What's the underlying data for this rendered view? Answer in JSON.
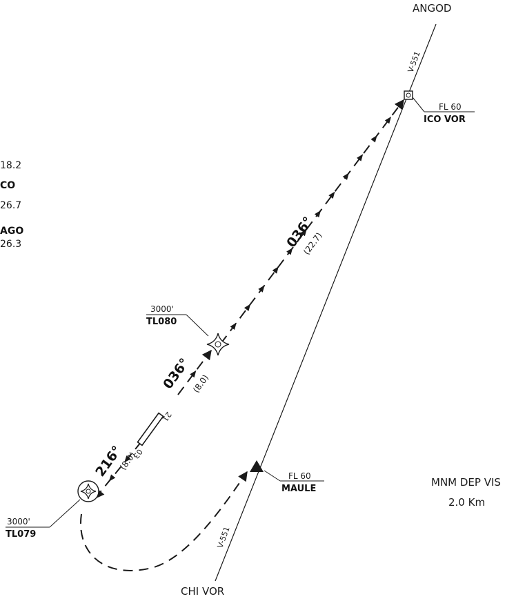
{
  "chart": {
    "airway_north_label": "V-551",
    "airway_south_label": "V-551",
    "angod_label": "ANGOD",
    "chi_vor_label": "CHI VOR",
    "ico_vor": {
      "name": "ICO VOR",
      "altitude": "FL 60"
    },
    "maule": {
      "name": "MAULE",
      "altitude": "FL 60"
    },
    "tl080": {
      "name": "TL080",
      "altitude": "3000'"
    },
    "tl079": {
      "name": "TL079",
      "altitude": "3000'"
    },
    "leg_upper": {
      "course": "036°",
      "distance": "(22.7)"
    },
    "leg_middle": {
      "course": "036°",
      "distance": "(8.0)"
    },
    "leg_lower": {
      "course": "216°",
      "distance": "(8.0)"
    },
    "runway": {
      "end_north": "21",
      "end_south": "03"
    },
    "partial_freq_lines": [
      {
        "text": "18.2",
        "bold": false
      },
      {
        "text": "CO",
        "bold": true
      },
      {
        "text": "26.7",
        "bold": false
      },
      {
        "text": "AGO",
        "bold": true
      },
      {
        "text": "26.3",
        "bold": false
      }
    ],
    "mnm_dep_vis": {
      "line1": "MNM DEP VIS",
      "line2": "2.0 Km"
    }
  },
  "colors": {
    "ink": "#1a1a1a",
    "background": "#ffffff"
  }
}
